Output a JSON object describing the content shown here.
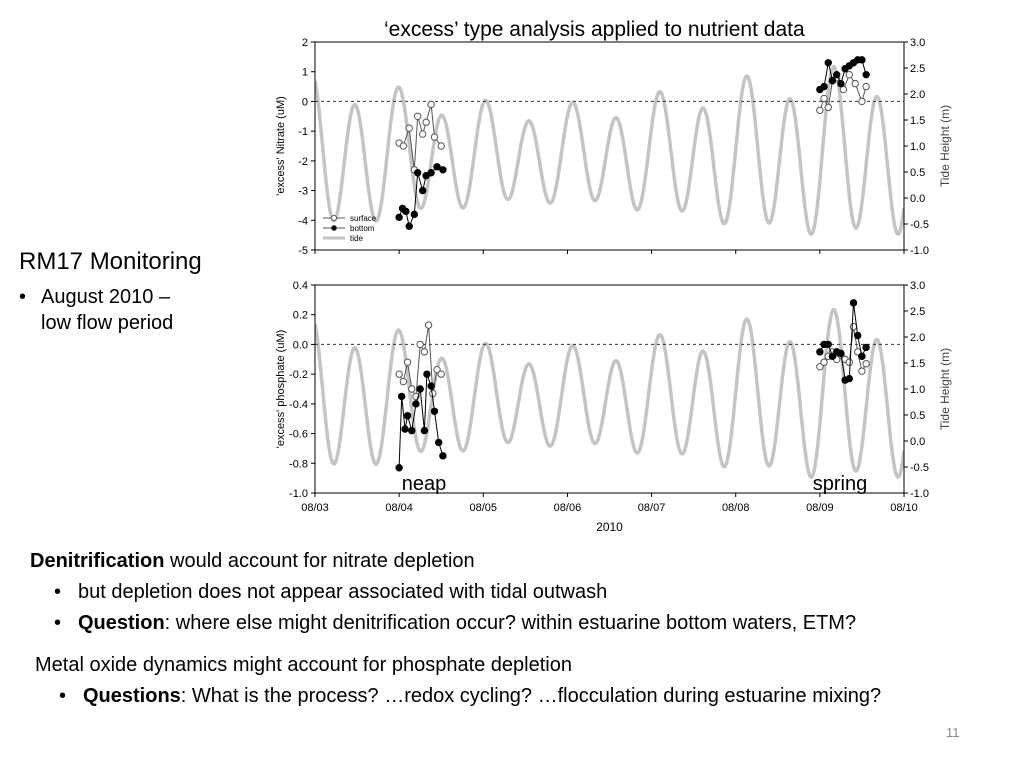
{
  "slide": {
    "chart_title": "‘excess’ type analysis applied to nutrient data",
    "monitoring_title": "RM17 Monitoring",
    "monitoring_bullet_line1": "August 2010 –",
    "monitoring_bullet_line2": "low flow period",
    "denit_bold": "Denitrification",
    "denit_text": " would account for nitrate depletion",
    "denit_bullet1": "but depletion does not appear associated with tidal outwash",
    "denit_q_bold": "Question",
    "denit_q_text": ": where else might denitrification occur?  within estuarine bottom waters, ETM?",
    "metal_text": "Metal oxide dynamics might account for phosphate depletion",
    "metal_q_bold": "Questions",
    "metal_q_text": ": What is the process? …redox cycling? …flocculation during estuarine mixing?",
    "page_number": "11",
    "bullet_glyph": "•"
  },
  "chart_data": [
    {
      "type": "line",
      "id": "nitrate",
      "ylabel": "'excess' Nitrate (uM)",
      "y2label": "Tide Height (m)",
      "ylim": [
        -5,
        2
      ],
      "y2lim": [
        -1,
        3
      ],
      "yticks": [
        "2",
        "1",
        "0",
        "-1",
        "-2",
        "-3",
        "-4",
        "-5"
      ],
      "y2ticks": [
        "3.0",
        "2.5",
        "2.0",
        "1.5",
        "1.0",
        "0.5",
        "0.0",
        "-0.5",
        "-1.0"
      ],
      "xlim": [
        3,
        10
      ],
      "legend_position": "bottom-left",
      "legend": [
        "surface",
        "bottom",
        "tide"
      ],
      "reference_line": 0,
      "series": [
        {
          "name": "surface",
          "marker": "open-circle",
          "color": "#555555",
          "x": [
            4.0,
            4.05,
            4.12,
            4.18,
            4.22,
            4.28,
            4.32,
            4.38,
            4.42,
            4.5
          ],
          "y": [
            -1.4,
            -1.5,
            -0.9,
            -2.3,
            -0.5,
            -1.1,
            -0.7,
            -0.1,
            -1.2,
            -1.5
          ]
        },
        {
          "name": "bottom",
          "marker": "filled-circle",
          "color": "#000000",
          "x": [
            4.0,
            4.04,
            4.08,
            4.12,
            4.18,
            4.22,
            4.28,
            4.32,
            4.38,
            4.45,
            4.52
          ],
          "y": [
            -3.9,
            -3.6,
            -3.7,
            -4.2,
            -3.8,
            -2.4,
            -3.0,
            -2.5,
            -2.4,
            -2.2,
            -2.3
          ]
        },
        {
          "name": "surface",
          "marker": "open-circle",
          "color": "#555555",
          "x": [
            9.0,
            9.05,
            9.1,
            9.15,
            9.2,
            9.28,
            9.35,
            9.42,
            9.5,
            9.55
          ],
          "y": [
            -0.3,
            0.1,
            -0.2,
            0.7,
            0.8,
            0.4,
            0.9,
            0.6,
            0.0,
            0.5
          ]
        },
        {
          "name": "bottom",
          "marker": "filled-circle",
          "color": "#000000",
          "x": [
            9.0,
            9.05,
            9.1,
            9.15,
            9.2,
            9.25,
            9.3,
            9.35,
            9.4,
            9.45,
            9.5,
            9.55
          ],
          "y": [
            0.4,
            0.5,
            1.3,
            0.7,
            0.9,
            0.6,
            1.1,
            1.2,
            1.3,
            1.4,
            1.4,
            0.9
          ]
        }
      ]
    },
    {
      "type": "line",
      "id": "phosphate",
      "ylabel": "'excess' phosphate (uM)",
      "y2label": "Tide Height (m)",
      "xlabel": "2010",
      "ylim": [
        -1.0,
        0.4
      ],
      "y2lim": [
        -1,
        3
      ],
      "yticks": [
        "0.4",
        "0.2",
        "0.0",
        "-0.2",
        "-0.4",
        "-0.6",
        "-0.8",
        "-1.0"
      ],
      "y2ticks": [
        "3.0",
        "2.5",
        "2.0",
        "1.5",
        "1.0",
        "0.5",
        "0.0",
        "-0.5",
        "-1.0"
      ],
      "xlim": [
        3,
        10
      ],
      "xticks": [
        "08/03",
        "08/04",
        "08/05",
        "08/06",
        "08/07",
        "08/08",
        "08/09",
        "08/10"
      ],
      "reference_line": 0,
      "annotations": [
        "neap",
        "spring"
      ],
      "series": [
        {
          "name": "surface",
          "marker": "open-circle",
          "color": "#555555",
          "x": [
            4.0,
            4.05,
            4.1,
            4.15,
            4.2,
            4.25,
            4.3,
            4.35,
            4.4,
            4.45,
            4.5
          ],
          "y": [
            -0.2,
            -0.25,
            -0.12,
            -0.3,
            -0.35,
            0.0,
            -0.05,
            0.13,
            -0.33,
            -0.17,
            -0.2
          ]
        },
        {
          "name": "bottom",
          "marker": "filled-circle",
          "color": "#000000",
          "x": [
            4.0,
            4.03,
            4.07,
            4.1,
            4.15,
            4.2,
            4.25,
            4.3,
            4.33,
            4.38,
            4.42,
            4.47,
            4.52
          ],
          "y": [
            -0.83,
            -0.35,
            -0.57,
            -0.48,
            -0.58,
            -0.4,
            -0.3,
            -0.58,
            -0.2,
            -0.28,
            -0.45,
            -0.66,
            -0.75
          ]
        },
        {
          "name": "surface",
          "marker": "open-circle",
          "color": "#555555",
          "x": [
            9.0,
            9.05,
            9.1,
            9.15,
            9.2,
            9.25,
            9.3,
            9.35,
            9.4,
            9.45,
            9.5,
            9.55
          ],
          "y": [
            -0.15,
            -0.12,
            -0.08,
            -0.05,
            -0.1,
            -0.07,
            -0.1,
            -0.12,
            0.12,
            -0.05,
            -0.18,
            -0.13
          ]
        },
        {
          "name": "bottom",
          "marker": "filled-circle",
          "color": "#000000",
          "x": [
            9.0,
            9.05,
            9.1,
            9.15,
            9.2,
            9.25,
            9.3,
            9.35,
            9.4,
            9.45,
            9.5,
            9.55
          ],
          "y": [
            -0.05,
            0.0,
            0.0,
            -0.08,
            -0.05,
            -0.06,
            -0.24,
            -0.23,
            0.28,
            0.06,
            -0.08,
            -0.02
          ]
        }
      ],
      "tide": {
        "name": "tide",
        "color": "#c0c0c0",
        "period_days": 0.517,
        "mean": 0.8,
        "amp_neap": 1.0,
        "amp_spring": 1.7
      }
    }
  ]
}
